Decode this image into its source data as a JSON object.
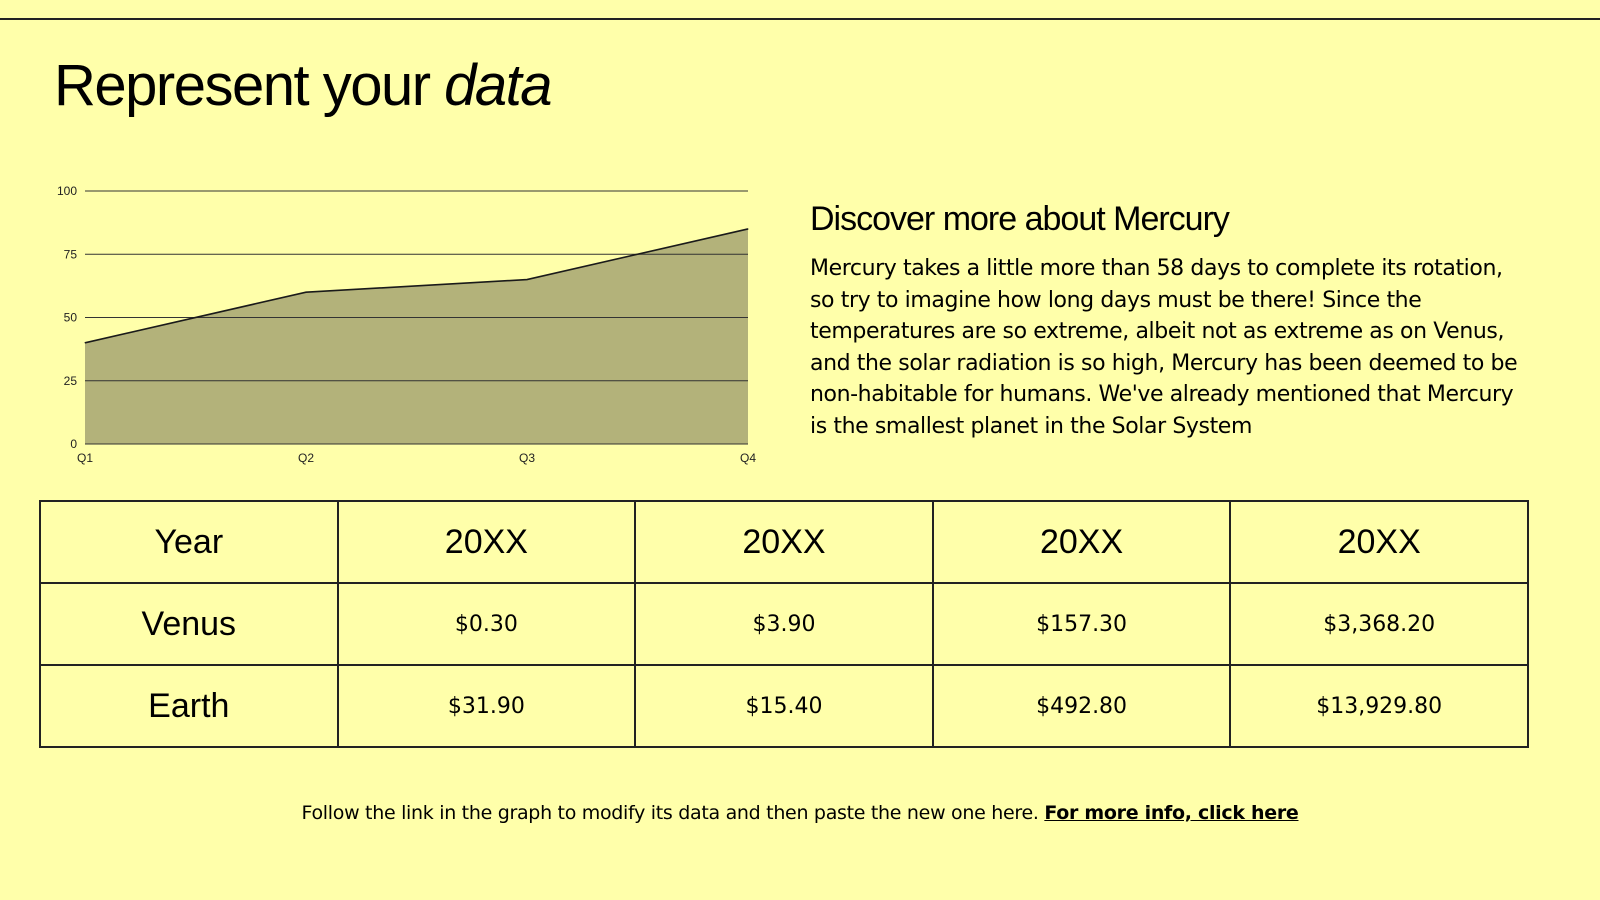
{
  "title": {
    "main": "Represent your ",
    "emphasis": "data"
  },
  "chart_data": {
    "type": "area",
    "categories": [
      "Q1",
      "Q2",
      "Q3",
      "Q4"
    ],
    "values": [
      40,
      60,
      65,
      85
    ],
    "ylim": [
      0,
      100
    ],
    "yticks": [
      "0",
      "25",
      "50",
      "75",
      "100"
    ],
    "grid": true,
    "fill_color": "#b3b27a",
    "line_color": "#1a1a1a"
  },
  "info": {
    "heading": "Discover more about Mercury",
    "body": "Mercury takes a little more than 58 days to complete its rotation, so try to imagine how long days must be there! Since the temperatures are so extreme, albeit not as extreme as on Venus, and the solar radiation is so high, Mercury has been deemed to be non-habitable for humans. We've already mentioned that Mercury is the smallest planet in the Solar System"
  },
  "table": {
    "header": [
      "Year",
      "20XX",
      "20XX",
      "20XX",
      "20XX"
    ],
    "rows": [
      [
        "Venus",
        "$0.30",
        "$3.90",
        "$157.30",
        "$3,368.20"
      ],
      [
        "Earth",
        "$31.90",
        "$15.40",
        "$492.80",
        "$13,929.80"
      ]
    ]
  },
  "footer": {
    "text": "Follow the link in the graph to modify its data and then paste the new one here. ",
    "link": "For more info, click here"
  },
  "colors": {
    "background": "#ffffaa",
    "area": "#b3b27a"
  }
}
